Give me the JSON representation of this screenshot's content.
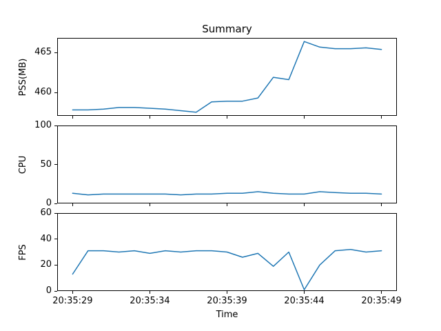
{
  "figure": {
    "title": "Summary",
    "xlabel": "Time",
    "line_color": "#1f77b4",
    "x_tick_labels": [
      "20:35:29",
      "20:35:34",
      "20:35:39",
      "20:35:44",
      "20:35:49"
    ],
    "x_tick_indices": [
      0,
      5,
      10,
      15,
      20
    ]
  },
  "chart_data": [
    {
      "type": "line",
      "title": "Summary",
      "ylabel": "PSS(MB)",
      "x": [
        "20:35:29",
        "20:35:30",
        "20:35:31",
        "20:35:32",
        "20:35:33",
        "20:35:34",
        "20:35:35",
        "20:35:36",
        "20:35:37",
        "20:35:38",
        "20:35:39",
        "20:35:40",
        "20:35:41",
        "20:35:42",
        "20:35:43",
        "20:35:44",
        "20:35:45",
        "20:35:46",
        "20:35:47",
        "20:35:48",
        "20:35:49"
      ],
      "values": [
        457.8,
        457.8,
        457.9,
        458.1,
        458.1,
        458.0,
        457.9,
        457.7,
        457.5,
        458.8,
        458.9,
        458.9,
        459.3,
        461.9,
        461.6,
        466.4,
        465.7,
        465.5,
        465.5,
        465.6,
        465.4
      ],
      "ylim": [
        457.05,
        466.85
      ],
      "yticks": [
        460,
        465
      ],
      "grid": false,
      "legend": false
    },
    {
      "type": "line",
      "ylabel": "CPU",
      "x": [
        "20:35:29",
        "20:35:30",
        "20:35:31",
        "20:35:32",
        "20:35:33",
        "20:35:34",
        "20:35:35",
        "20:35:36",
        "20:35:37",
        "20:35:38",
        "20:35:39",
        "20:35:40",
        "20:35:41",
        "20:35:42",
        "20:35:43",
        "20:35:44",
        "20:35:45",
        "20:35:46",
        "20:35:47",
        "20:35:48",
        "20:35:49"
      ],
      "values": [
        13,
        11,
        12,
        12,
        12,
        12,
        12,
        11,
        12,
        12,
        13,
        13,
        15,
        13,
        12,
        12,
        15,
        14,
        13,
        13,
        12
      ],
      "ylim": [
        0,
        100
      ],
      "yticks": [
        0,
        50,
        100
      ],
      "grid": false,
      "legend": false
    },
    {
      "type": "line",
      "ylabel": "FPS",
      "xlabel": "Time",
      "x": [
        "20:35:29",
        "20:35:30",
        "20:35:31",
        "20:35:32",
        "20:35:33",
        "20:35:34",
        "20:35:35",
        "20:35:36",
        "20:35:37",
        "20:35:38",
        "20:35:39",
        "20:35:40",
        "20:35:41",
        "20:35:42",
        "20:35:43",
        "20:35:44",
        "20:35:45",
        "20:35:46",
        "20:35:47",
        "20:35:48",
        "20:35:49"
      ],
      "values": [
        13,
        31,
        31,
        30,
        31,
        29,
        31,
        30,
        31,
        31,
        30,
        26,
        29,
        19,
        30,
        1,
        20,
        31,
        32,
        30,
        31
      ],
      "ylim": [
        0,
        60
      ],
      "yticks": [
        0,
        20,
        40,
        60
      ],
      "grid": false,
      "legend": false
    }
  ]
}
